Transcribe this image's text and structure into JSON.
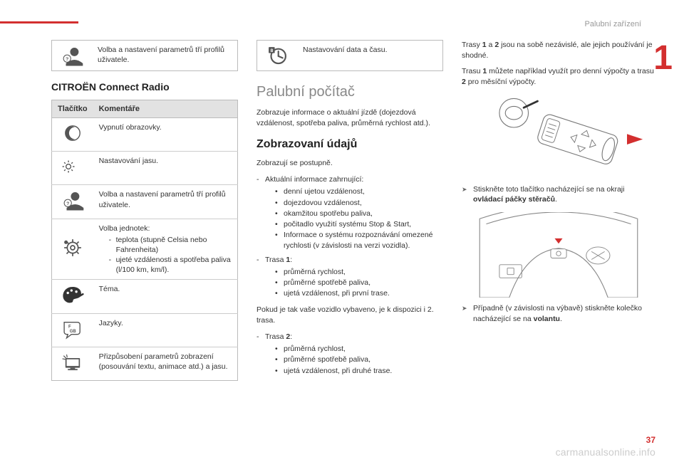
{
  "header": {
    "section_label": "Palubní zařízení",
    "page_number": "37",
    "watermark": "carmanualsonline.info",
    "chapter_number": "1",
    "accent_color": "#d32f2f",
    "rule_color": "#bbbbbb",
    "bg_header": "#e2e2e2"
  },
  "col1": {
    "toprow_text": "Volba a nastavení parametrů tří profilů uživatele.",
    "heading": "CITROËN Connect Radio",
    "table": {
      "col_button": "Tlačítko",
      "col_comment": "Komentáře",
      "rows": [
        {
          "icon": "moon",
          "text": "Vypnutí obrazovky."
        },
        {
          "icon": "sunmoon",
          "text": "Nastavování jasu."
        },
        {
          "icon": "profile",
          "text": "Volba a nastavení parametrů tří profilů uživatele."
        },
        {
          "icon": "gear",
          "text": "Volba jednotek:",
          "sub": [
            "teplota (stupně Celsia nebo Fahrenheita)",
            "ujeté vzdálenosti a spotřeba paliva (l/100 km, km/l)."
          ]
        },
        {
          "icon": "palette",
          "text": "Téma."
        },
        {
          "icon": "lang",
          "text": "Jazyky."
        },
        {
          "icon": "screen",
          "text": "Přizpůsobení parametrů zobrazení (posouvání textu, animace atd.) a jasu."
        }
      ]
    }
  },
  "col2": {
    "toprow_text": "Nastavování data a času.",
    "h_big": "Palubní počítač",
    "intro": "Zobrazuje informace o aktuální jízdě (dojezdová vzdálenost, spotřeba paliva, průměrná rychlost atd.).",
    "h_med": "Zobrazovaní údajů",
    "lead": "Zobrazují se postupně.",
    "block1_title": "Aktuální informace zahrnující:",
    "block1_items": [
      "denní ujetou vzdálenost,",
      "dojezdovou vzdálenost,",
      "okamžitou spotřebu paliva,",
      "počitadlo využití systému Stop & Start,",
      "Informace o systému rozpoznávání omezené rychlosti (v závislosti na verzi vozidla)."
    ],
    "trasa1_label": "Trasa 1:",
    "trasa_items": [
      "průměrná rychlost,",
      "průměrné spotřebě paliva,",
      "ujetá vzdálenost, při první trase."
    ],
    "mid_para": "Pokud je tak vaše vozidlo vybaveno, je k dispozici i 2. trasa.",
    "trasa2_label": "Trasa 2:",
    "trasa2_items": [
      "průměrná rychlost,",
      "průměrné spotřebě paliva,",
      "ujetá vzdálenost, při druhé trase."
    ]
  },
  "col3": {
    "top_para_1a": "Trasy ",
    "top_para_1b": " a ",
    "top_para_1c": " jsou na sobě nezávislé, ale jejich používání je shodné.",
    "top_para_2a": "Trasu ",
    "top_para_2b": " můžete například využít pro denní výpočty a trasu ",
    "top_para_2c": " pro měsíční výpočty.",
    "bold_1": "1",
    "bold_2": "2",
    "ptr1_a": "Stiskněte toto tlačítko nacházející se na okraji ",
    "ptr1_b": "ovládací páčky stěračů",
    "ptr1_c": ".",
    "ptr2_a": "Případně (v závislosti na výbavě) stiskněte kolečko nacházející se na ",
    "ptr2_b": "volantu",
    "ptr2_c": "."
  }
}
